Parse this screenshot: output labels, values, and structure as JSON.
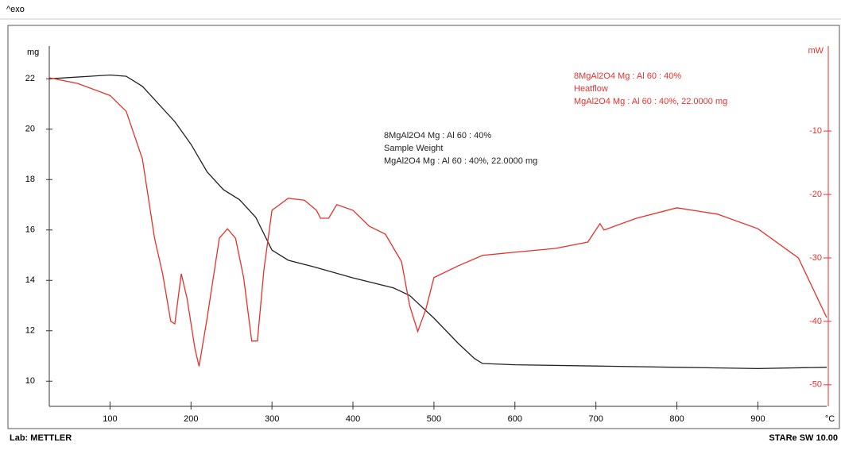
{
  "header": {
    "exo": "^exo"
  },
  "footer": {
    "lab": "Lab: METTLER",
    "software": "STARe SW 10.00"
  },
  "chart_data": {
    "type": "line",
    "xlabel": "°C",
    "ylabel": "mg",
    "y2label": "mW",
    "xlim": [
      25,
      985
    ],
    "xticks": [
      100,
      200,
      300,
      400,
      500,
      600,
      700,
      800,
      900
    ],
    "ylim": [
      9.0,
      23.3
    ],
    "yticks": [
      10,
      12,
      14,
      16,
      18,
      20,
      22
    ],
    "y2lim": [
      -53.4,
      3.4
    ],
    "y2ticks": [
      -10,
      -20,
      -30,
      -40,
      -50
    ],
    "series": [
      {
        "name": "Sample Weight",
        "color": "#222222",
        "annotation": [
          "8MgAl2O4 Mg : Al 60 : 40%",
          "MgAl2O4 Mg : Al 60 : 40%, 22.0000 mg"
        ],
        "x": [
          25,
          50,
          75,
          100,
          120,
          140,
          160,
          180,
          200,
          220,
          240,
          260,
          280,
          300,
          320,
          350,
          400,
          450,
          470,
          500,
          530,
          550,
          560,
          600,
          700,
          800,
          900,
          985
        ],
        "values": [
          22.0,
          22.05,
          22.1,
          22.15,
          22.1,
          21.7,
          21.0,
          20.3,
          19.4,
          18.3,
          17.6,
          17.2,
          16.5,
          15.2,
          14.8,
          14.55,
          14.1,
          13.7,
          13.4,
          12.5,
          11.5,
          10.9,
          10.7,
          10.65,
          10.6,
          10.55,
          10.5,
          10.55
        ]
      },
      {
        "name": "Heatflow",
        "color": "#e8302a",
        "axis": "y2",
        "annotation": [
          "8MgAl2O4 Mg : Al 60 : 40%",
          "MgAl2O4 Mg : Al 60 : 40%, 22.0000 mg"
        ],
        "x": [
          25,
          60,
          100,
          120,
          140,
          155,
          165,
          175,
          180,
          188,
          195,
          205,
          210,
          220,
          235,
          245,
          255,
          265,
          275,
          282,
          290,
          300,
          320,
          340,
          355,
          360,
          370,
          380,
          400,
          420,
          440,
          460,
          470,
          480,
          490,
          500,
          530,
          560,
          600,
          650,
          690,
          705,
          710,
          750,
          800,
          850,
          900,
          950,
          985
        ],
        "values": [
          -1.6,
          -2.5,
          -4.4,
          -6.9,
          -14.4,
          -26.9,
          -32.5,
          -40,
          -40.4,
          -32.5,
          -36.3,
          -44.4,
          -47.1,
          -39.4,
          -26.9,
          -25.4,
          -26.9,
          -33.1,
          -43.1,
          -43.1,
          -31.9,
          -22.5,
          -20.6,
          -20.9,
          -22.5,
          -23.75,
          -23.75,
          -21.6,
          -22.5,
          -25,
          -26.25,
          -30.6,
          -37.5,
          -41.6,
          -38.1,
          -33.1,
          -31.25,
          -29.6,
          -29.1,
          -28.5,
          -27.5,
          -24.6,
          -25.6,
          -23.75,
          -22.1,
          -23.1,
          -25.4,
          -30,
          -39.4
        ]
      }
    ]
  }
}
